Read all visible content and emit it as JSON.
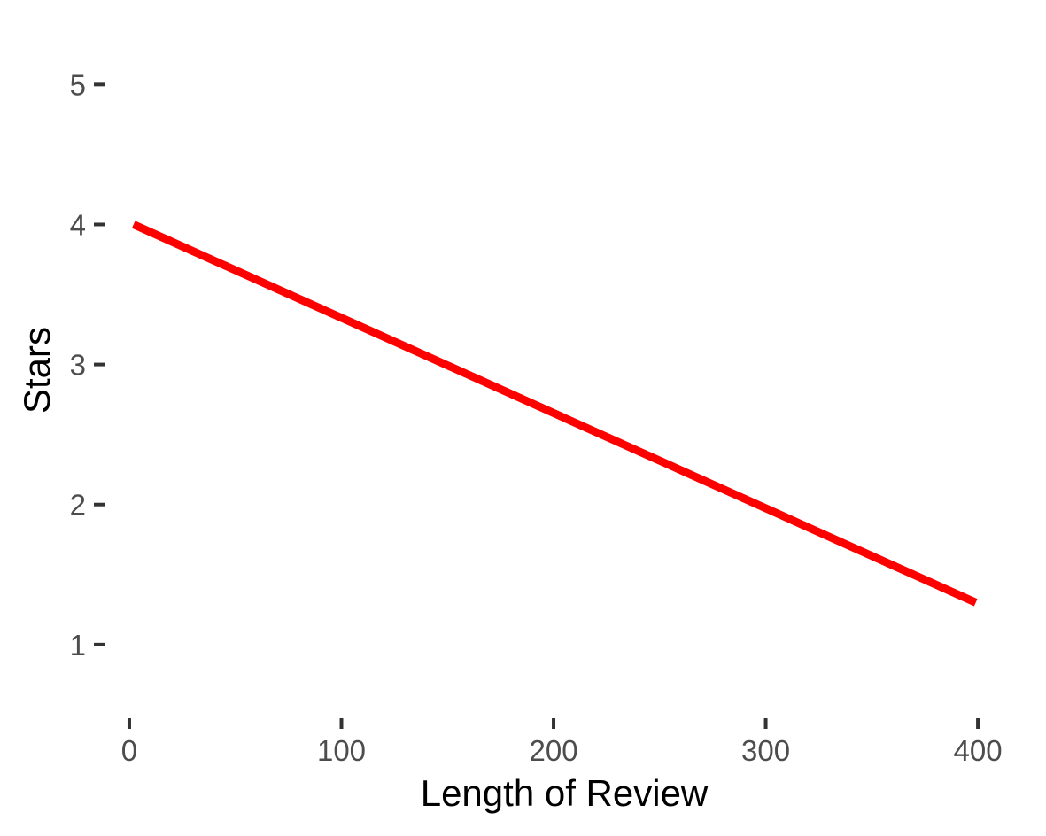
{
  "chart_data": {
    "type": "line",
    "title": "",
    "xlabel": "Length of Review",
    "ylabel": "Stars",
    "xlim": [
      -5,
      415
    ],
    "ylim": [
      0.55,
      5.35
    ],
    "x_ticks": [
      0,
      100,
      200,
      300,
      400
    ],
    "y_ticks": [
      1,
      2,
      3,
      4,
      5
    ],
    "grid": false,
    "legend": "none",
    "series": [
      {
        "color": "#ff0000",
        "x": [
          2,
          399
        ],
        "y": [
          4.0,
          1.3
        ]
      }
    ]
  }
}
